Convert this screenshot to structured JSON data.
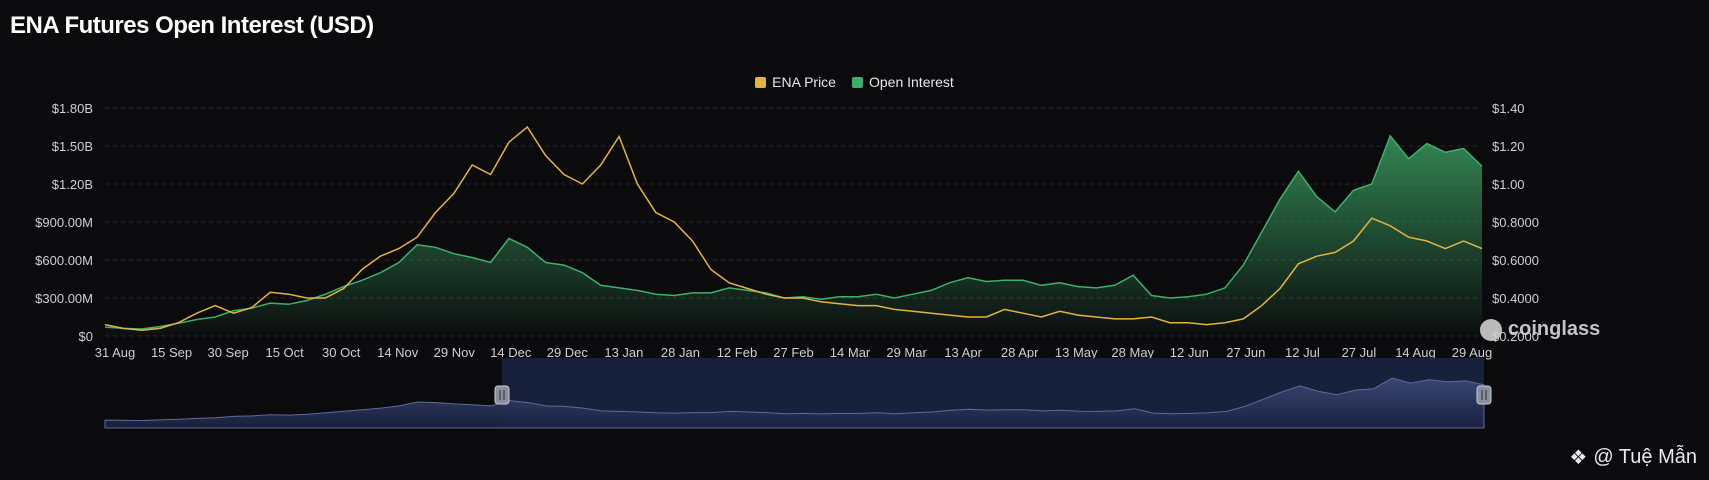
{
  "title": "ENA Futures Open Interest (USD)",
  "legend": [
    {
      "label": "ENA Price",
      "color": "#e3b341"
    },
    {
      "label": "Open Interest",
      "color": "#3fae6a"
    }
  ],
  "watermark": {
    "logo_text": "coinglass",
    "credit": "@ Tuệ Mẫn",
    "credit_icon": "diamond-logo-icon"
  },
  "colors": {
    "background": "#0b0b0d",
    "price": "#e3b341",
    "open_interest": "#3fae6a",
    "navigator": "#4a5a86"
  },
  "chart_data": {
    "type": "line",
    "title": "ENA Futures Open Interest (USD)",
    "x_tick_labels": [
      "31 Aug",
      "15 Sep",
      "30 Sep",
      "15 Oct",
      "30 Oct",
      "14 Nov",
      "29 Nov",
      "14 Dec",
      "29 Dec",
      "13 Jan",
      "28 Jan",
      "12 Feb",
      "27 Feb",
      "14 Mar",
      "29 Mar",
      "13 Apr",
      "28 Apr",
      "13 May",
      "28 May",
      "12 Jun",
      "27 Jun",
      "12 Jul",
      "27 Jul",
      "14 Aug",
      "29 Aug"
    ],
    "y_left": {
      "ticks": [
        "$0",
        "$300.00M",
        "$600.00M",
        "$900.00M",
        "$1.20B",
        "$1.50B",
        "$1.80B"
      ],
      "ylim": [
        0,
        1800000000
      ]
    },
    "y_right": {
      "ticks": [
        "$0.2000",
        "$0.4000",
        "$0.6000",
        "$0.8000",
        "$1.00",
        "$1.20",
        "$1.40"
      ],
      "ylim": [
        0.2,
        1.4
      ]
    },
    "legend_position": "top-center",
    "grid": true,
    "series": [
      {
        "name": "Open Interest",
        "axis": "left",
        "values": [
          70000000,
          60000000,
          55000000,
          75000000,
          100000000,
          130000000,
          150000000,
          200000000,
          220000000,
          260000000,
          250000000,
          280000000,
          330000000,
          390000000,
          440000000,
          500000000,
          580000000,
          720000000,
          700000000,
          650000000,
          620000000,
          580000000,
          770000000,
          700000000,
          580000000,
          560000000,
          500000000,
          400000000,
          380000000,
          360000000,
          330000000,
          320000000,
          340000000,
          340000000,
          380000000,
          360000000,
          340000000,
          300000000,
          310000000,
          290000000,
          310000000,
          310000000,
          330000000,
          300000000,
          330000000,
          360000000,
          420000000,
          460000000,
          430000000,
          440000000,
          440000000,
          400000000,
          420000000,
          390000000,
          380000000,
          400000000,
          480000000,
          320000000,
          300000000,
          310000000,
          330000000,
          380000000,
          560000000,
          820000000,
          1080000000,
          1300000000,
          1100000000,
          980000000,
          1150000000,
          1200000000,
          1580000000,
          1400000000,
          1520000000,
          1450000000,
          1480000000,
          1340000000
        ]
      },
      {
        "name": "ENA Price",
        "axis": "right",
        "values": [
          0.26,
          0.24,
          0.23,
          0.24,
          0.27,
          0.32,
          0.36,
          0.32,
          0.35,
          0.43,
          0.42,
          0.4,
          0.4,
          0.45,
          0.55,
          0.62,
          0.66,
          0.72,
          0.85,
          0.95,
          1.1,
          1.05,
          1.22,
          1.3,
          1.15,
          1.05,
          1.0,
          1.1,
          1.25,
          1.0,
          0.85,
          0.8,
          0.7,
          0.55,
          0.48,
          0.45,
          0.42,
          0.4,
          0.4,
          0.38,
          0.37,
          0.36,
          0.36,
          0.34,
          0.33,
          0.32,
          0.31,
          0.3,
          0.3,
          0.34,
          0.32,
          0.3,
          0.33,
          0.31,
          0.3,
          0.29,
          0.29,
          0.3,
          0.27,
          0.27,
          0.26,
          0.27,
          0.29,
          0.36,
          0.45,
          0.58,
          0.62,
          0.64,
          0.7,
          0.82,
          0.78,
          0.72,
          0.7,
          0.66,
          0.7,
          0.66
        ]
      }
    ]
  }
}
